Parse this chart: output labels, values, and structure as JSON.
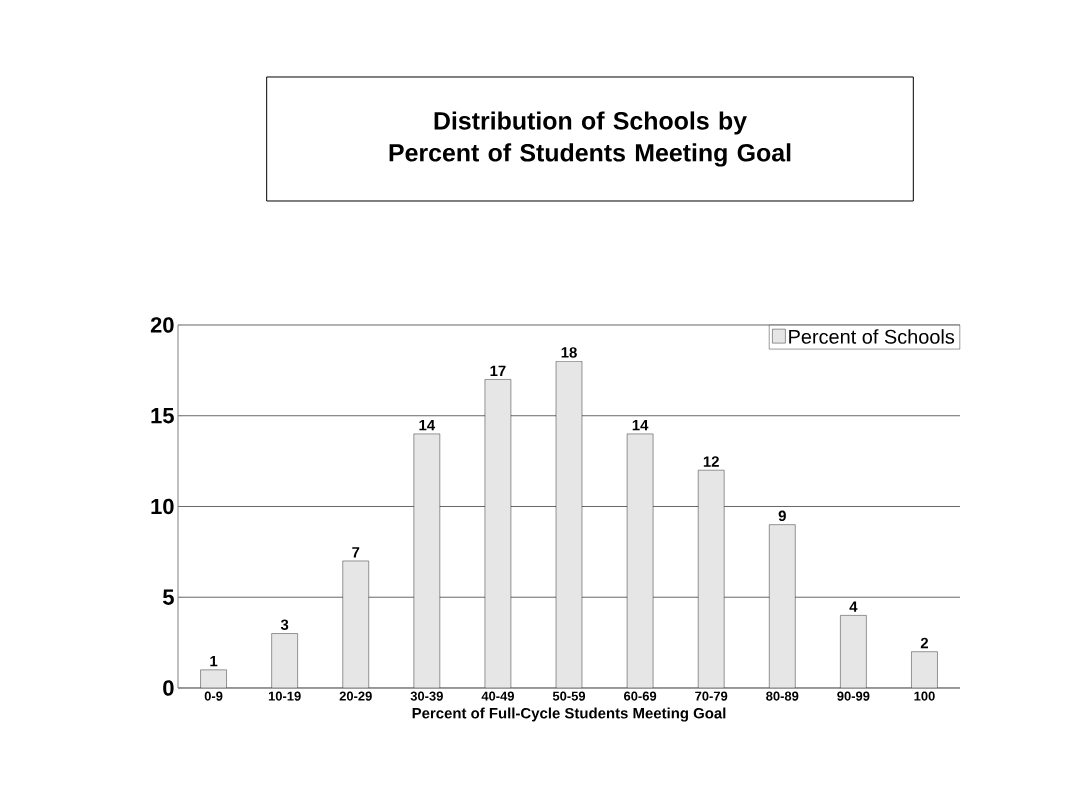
{
  "chart_data": {
    "type": "bar",
    "title": "Distribution of Schools by Percent of Students Meeting Goal",
    "xlabel": "Percent of Full-Cycle Students Meeting Goal",
    "categories": [
      "0-9",
      "10-19",
      "20-29",
      "30-39",
      "40-49",
      "50-59",
      "60-69",
      "70-79",
      "80-89",
      "90-99",
      "100"
    ],
    "series": [
      {
        "name": "Percent of Schools",
        "color": "#e6e6e6",
        "values": [
          1,
          3,
          7,
          14,
          17,
          18,
          14,
          12,
          9,
          4,
          2
        ]
      }
    ],
    "ylim": [
      0,
      20
    ],
    "yticks": [
      0,
      5,
      10,
      15,
      20
    ],
    "grid": "y",
    "legend": "top right",
    "data_labels": true
  }
}
